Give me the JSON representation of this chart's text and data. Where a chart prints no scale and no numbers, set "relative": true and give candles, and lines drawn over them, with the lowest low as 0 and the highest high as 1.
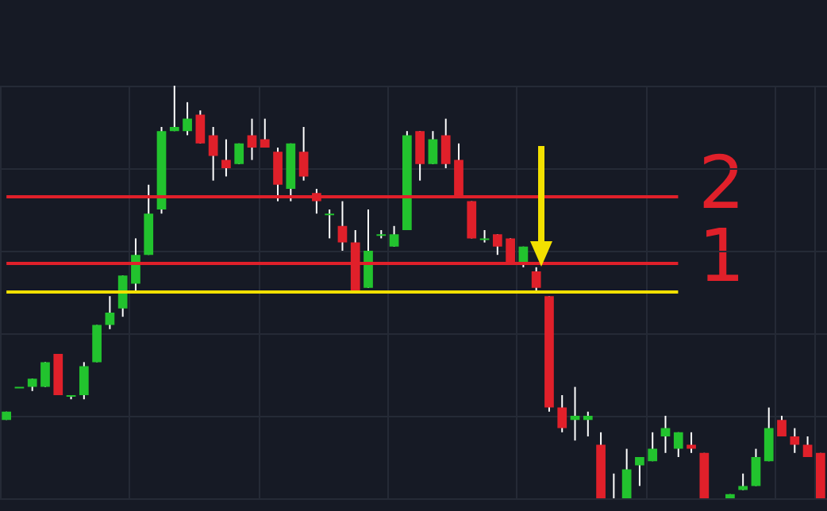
{
  "chart_data": {
    "type": "candlestick",
    "relative": true,
    "grid": true,
    "annotations": [
      "2",
      "1"
    ],
    "categories": [
      null,
      null,
      null,
      null,
      null,
      null,
      null,
      null,
      null,
      null,
      null,
      null,
      null,
      null,
      null,
      null,
      null,
      null,
      null,
      null,
      null,
      null,
      null,
      null,
      null,
      null,
      null,
      null,
      null,
      null,
      null,
      null,
      null,
      null,
      null,
      null,
      null,
      null,
      null,
      null,
      null,
      null,
      null,
      null,
      null,
      null,
      null,
      null,
      null,
      null,
      null,
      null,
      null,
      null,
      null,
      null,
      null,
      null,
      null,
      null,
      null,
      null,
      null,
      null
    ],
    "ohlc": [
      [
        0.19,
        0.21,
        0.19,
        0.21
      ],
      [
        0.27,
        0.27,
        0.27,
        0.27
      ],
      [
        0.27,
        0.29,
        0.26,
        0.29
      ],
      [
        0.27,
        0.33,
        0.27,
        0.33
      ],
      [
        0.35,
        0.35,
        0.25,
        0.25
      ],
      [
        0.25,
        0.25,
        0.24,
        0.25
      ],
      [
        0.25,
        0.33,
        0.24,
        0.32
      ],
      [
        0.33,
        0.42,
        0.33,
        0.42
      ],
      [
        0.42,
        0.49,
        0.41,
        0.45
      ],
      [
        0.46,
        0.54,
        0.44,
        0.54
      ],
      [
        0.52,
        0.63,
        0.5,
        0.59
      ],
      [
        0.59,
        0.76,
        0.59,
        0.69
      ],
      [
        0.7,
        0.9,
        0.69,
        0.89
      ],
      [
        0.89,
        1,
        0.89,
        0.9
      ],
      [
        0.89,
        0.96,
        0.88,
        0.92
      ],
      [
        0.93,
        0.94,
        0.86,
        0.86
      ],
      [
        0.88,
        0.9,
        0.77,
        0.83
      ],
      [
        0.82,
        0.87,
        0.78,
        0.8
      ],
      [
        0.81,
        0.86,
        0.81,
        0.86
      ],
      [
        0.88,
        0.92,
        0.82,
        0.85
      ],
      [
        0.87,
        0.92,
        0.85,
        0.85
      ],
      [
        0.84,
        0.85,
        0.72,
        0.76
      ],
      [
        0.75,
        0.86,
        0.72,
        0.86
      ],
      [
        0.84,
        0.9,
        0.77,
        0.78
      ],
      [
        0.74,
        0.75,
        0.69,
        0.72
      ],
      [
        0.69,
        0.7,
        0.63,
        0.69
      ],
      [
        0.66,
        0.72,
        0.6,
        0.62
      ],
      [
        0.62,
        0.65,
        0.5,
        0.5
      ],
      [
        0.51,
        0.7,
        0.51,
        0.6
      ],
      [
        0.64,
        0.65,
        0.63,
        0.64
      ],
      [
        0.61,
        0.66,
        0.61,
        0.64
      ],
      [
        0.65,
        0.89,
        0.65,
        0.88
      ],
      [
        0.89,
        0.89,
        0.77,
        0.81
      ],
      [
        0.81,
        0.89,
        0.81,
        0.87
      ],
      [
        0.88,
        0.92,
        0.8,
        0.81
      ],
      [
        0.82,
        0.86,
        0.73,
        0.73
      ],
      [
        0.72,
        0.72,
        0.63,
        0.63
      ],
      [
        0.63,
        0.65,
        0.62,
        0.63
      ],
      [
        0.64,
        0.64,
        0.59,
        0.61
      ],
      [
        0.63,
        0.63,
        0.57,
        0.57
      ],
      [
        0.57,
        0.61,
        0.56,
        0.61
      ],
      [
        0.55,
        0.56,
        0.5,
        0.51
      ],
      [
        0.49,
        0.49,
        0.21,
        0.22
      ],
      [
        0.22,
        0.25,
        0.16,
        0.17
      ],
      [
        0.19,
        0.27,
        0.14,
        0.2
      ],
      [
        0.19,
        0.21,
        0.15,
        0.2
      ],
      [
        0.13,
        0.16,
        0,
        0
      ],
      [
        0,
        0.06,
        0,
        0
      ],
      [
        0,
        0.12,
        0,
        0.07
      ],
      [
        0.08,
        0.1,
        0.03,
        0.1
      ],
      [
        0.09,
        0.16,
        0.09,
        0.12
      ],
      [
        0.15,
        0.2,
        0.11,
        0.17
      ],
      [
        0.12,
        0.16,
        0.1,
        0.16
      ],
      [
        0.13,
        0.16,
        0.11,
        0.12
      ],
      [
        0.11,
        0.11,
        0,
        0
      ],
      null,
      [
        0,
        0.01,
        0,
        0.01
      ],
      [
        0.02,
        0.06,
        0.02,
        0.03
      ],
      [
        0.03,
        0.12,
        0.03,
        0.1
      ],
      [
        0.09,
        0.22,
        0.09,
        0.17
      ],
      [
        0.19,
        0.2,
        0.15,
        0.15
      ],
      [
        0.15,
        0.17,
        0.11,
        0.13
      ],
      [
        0.13,
        0.15,
        0.1,
        0.1
      ],
      [
        0.11,
        0.11,
        0,
        0
      ]
    ],
    "colors": [
      "#22c32e",
      "#22c32e",
      "#22c32e",
      "#22c32e",
      "#e0202a",
      "#22c32e",
      "#22c32e",
      "#22c32e",
      "#22c32e",
      "#22c32e",
      "#22c32e",
      "#22c32e",
      "#22c32e",
      "#22c32e",
      "#22c32e",
      "#e0202a",
      "#e0202a",
      "#e0202a",
      "#22c32e",
      "#e0202a",
      "#e0202a",
      "#e0202a",
      "#22c32e",
      "#e0202a",
      "#e0202a",
      "#22c32e",
      "#e0202a",
      "#e0202a",
      "#22c32e",
      "#22c32e",
      "#22c32e",
      "#22c32e",
      "#e0202a",
      "#22c32e",
      "#e0202a",
      "#e0202a",
      "#e0202a",
      "#22c32e",
      "#e0202a",
      "#e0202a",
      "#22c32e",
      "#e0202a",
      "#e0202a",
      "#e0202a",
      "#22c32e",
      "#22c32e",
      "#e0202a",
      "#e0202a",
      "#22c32e",
      "#22c32e",
      "#22c32e",
      "#22c32e",
      "#22c32e",
      "#e0202a",
      "#e0202a",
      null,
      "#22c32e",
      "#22c32e",
      "#22c32e",
      "#22c32e",
      "#e0202a",
      "#e0202a",
      "#e0202a",
      "#e0202a"
    ],
    "ref_lines": [
      {
        "axis": "y",
        "value": 0.73,
        "color": "#e0202a"
      },
      {
        "axis": "y",
        "value": 0.57,
        "color": "#e0202a"
      },
      {
        "axis": "y",
        "value": 0.5,
        "color": "#f2e000"
      }
    ]
  }
}
